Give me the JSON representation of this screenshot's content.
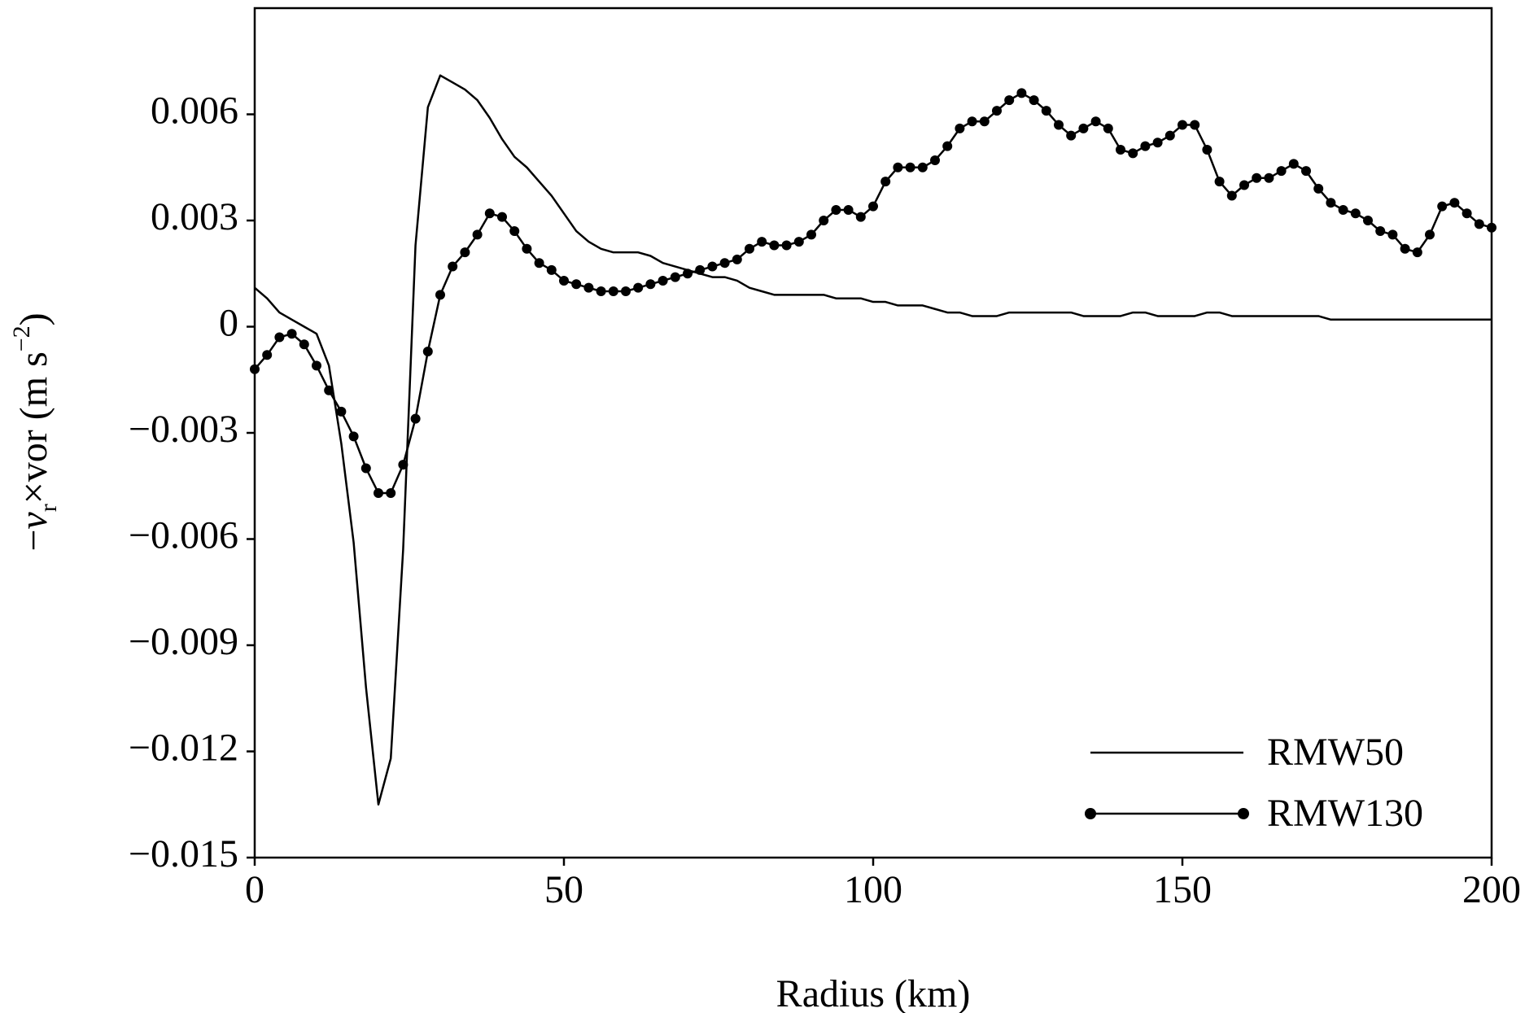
{
  "chart_data": {
    "type": "line",
    "xlabel": "Radius (km)",
    "ylabel": [
      "−",
      "v",
      "r",
      "×vor (m s",
      "−2",
      ")"
    ],
    "xlim": [
      0,
      200
    ],
    "xticks": [
      0,
      50,
      100,
      150,
      200
    ],
    "ylim": [
      -0.015,
      0.009
    ],
    "yticks": [
      {
        "value": -0.015,
        "label": "−0.015"
      },
      {
        "value": -0.012,
        "label": "−0.012"
      },
      {
        "value": -0.009,
        "label": "−0.009"
      },
      {
        "value": -0.006,
        "label": "−0.006"
      },
      {
        "value": -0.003,
        "label": "−0.003"
      },
      0,
      0.003,
      0.006
    ],
    "legend": "lower right",
    "x": [
      0,
      2,
      4,
      6,
      8,
      10,
      12,
      14,
      16,
      18,
      20,
      22,
      24,
      26,
      28,
      30,
      32,
      34,
      36,
      38,
      40,
      42,
      44,
      46,
      48,
      50,
      52,
      54,
      56,
      58,
      60,
      62,
      64,
      66,
      68,
      70,
      72,
      74,
      76,
      78,
      80,
      82,
      84,
      86,
      88,
      90,
      92,
      94,
      96,
      98,
      100,
      102,
      104,
      106,
      108,
      110,
      112,
      114,
      116,
      118,
      120,
      122,
      124,
      126,
      128,
      130,
      132,
      134,
      136,
      138,
      140,
      142,
      144,
      146,
      148,
      150,
      152,
      154,
      156,
      158,
      160,
      162,
      164,
      166,
      168,
      170,
      172,
      174,
      176,
      178,
      180,
      182,
      184,
      186,
      188,
      190,
      192,
      194,
      196,
      198,
      200
    ],
    "series": [
      {
        "name": "RMW50",
        "color": "#000000",
        "marker": "none",
        "values": [
          0.0011,
          0.0008,
          0.0004,
          0.0002,
          0.0,
          -0.0002,
          -0.0011,
          -0.0033,
          -0.0061,
          -0.0102,
          -0.0135,
          -0.0122,
          -0.0063,
          0.0023,
          0.0062,
          0.0071,
          0.0069,
          0.0067,
          0.0064,
          0.0059,
          0.0053,
          0.0048,
          0.0045,
          0.0041,
          0.0037,
          0.0032,
          0.0027,
          0.0024,
          0.0022,
          0.0021,
          0.0021,
          0.0021,
          0.002,
          0.0018,
          0.0017,
          0.0016,
          0.0015,
          0.0014,
          0.0014,
          0.0013,
          0.0011,
          0.001,
          0.0009,
          0.0009,
          0.0009,
          0.0009,
          0.0009,
          0.0008,
          0.0008,
          0.0008,
          0.0007,
          0.0007,
          0.0006,
          0.0006,
          0.0006,
          0.0005,
          0.0004,
          0.0004,
          0.0003,
          0.0003,
          0.0003,
          0.0004,
          0.0004,
          0.0004,
          0.0004,
          0.0004,
          0.0004,
          0.0003,
          0.0003,
          0.0003,
          0.0003,
          0.0004,
          0.0004,
          0.0003,
          0.0003,
          0.0003,
          0.0003,
          0.0004,
          0.0004,
          0.0003,
          0.0003,
          0.0003,
          0.0003,
          0.0003,
          0.0003,
          0.0003,
          0.0003,
          0.0002,
          0.0002,
          0.0002,
          0.0002,
          0.0002,
          0.0002,
          0.0002,
          0.0002,
          0.0002,
          0.0002,
          0.0002,
          0.0002,
          0.0002,
          0.0002
        ]
      },
      {
        "name": "RMW130",
        "color": "#000000",
        "marker": "circle",
        "values": [
          -0.0012,
          -0.0008,
          -0.0003,
          -0.0002,
          -0.0005,
          -0.0011,
          -0.0018,
          -0.0024,
          -0.0031,
          -0.004,
          -0.0047,
          -0.0047,
          -0.0039,
          -0.0026,
          -0.0007,
          0.0009,
          0.0017,
          0.0021,
          0.0026,
          0.0032,
          0.0031,
          0.0027,
          0.0022,
          0.0018,
          0.0016,
          0.0013,
          0.0012,
          0.0011,
          0.001,
          0.001,
          0.001,
          0.0011,
          0.0012,
          0.0013,
          0.0014,
          0.0015,
          0.0016,
          0.0017,
          0.0018,
          0.0019,
          0.0022,
          0.0024,
          0.0023,
          0.0023,
          0.0024,
          0.0026,
          0.003,
          0.0033,
          0.0033,
          0.0031,
          0.0034,
          0.0041,
          0.0045,
          0.0045,
          0.0045,
          0.0047,
          0.0051,
          0.0056,
          0.0058,
          0.0058,
          0.0061,
          0.0064,
          0.0066,
          0.0064,
          0.0061,
          0.0057,
          0.0054,
          0.0056,
          0.0058,
          0.0056,
          0.005,
          0.0049,
          0.0051,
          0.0052,
          0.0054,
          0.0057,
          0.0057,
          0.005,
          0.0041,
          0.0037,
          0.004,
          0.0042,
          0.0042,
          0.0044,
          0.0046,
          0.0044,
          0.0039,
          0.0035,
          0.0033,
          0.0032,
          0.003,
          0.0027,
          0.0026,
          0.0022,
          0.0021,
          0.0026,
          0.0034,
          0.0035,
          0.0032,
          0.0029,
          0.0028
        ]
      }
    ]
  }
}
